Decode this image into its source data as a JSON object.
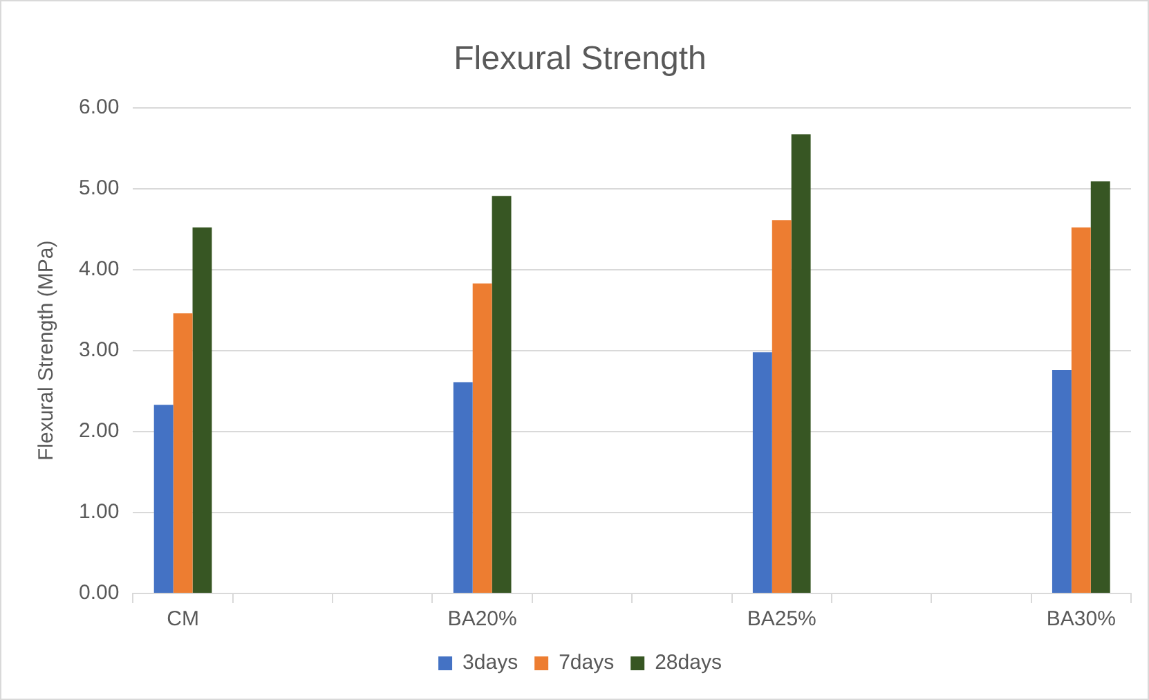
{
  "chart_data": {
    "type": "bar",
    "title": "Flexural Strength",
    "ylabel": "Flexural Strength (MPa)",
    "categories": [
      "CM",
      null,
      null,
      "BA20%",
      null,
      null,
      "BA25%",
      null,
      null,
      "BA30%"
    ],
    "series": [
      {
        "name": "3days",
        "color": "#4472c4",
        "values": [
          2.33,
          null,
          null,
          2.61,
          null,
          null,
          2.98,
          null,
          null,
          2.76
        ]
      },
      {
        "name": "7days",
        "color": "#ed7d31",
        "values": [
          3.46,
          null,
          null,
          3.83,
          null,
          null,
          4.61,
          null,
          null,
          4.52
        ]
      },
      {
        "name": "28days",
        "color": "#375623",
        "values": [
          4.52,
          null,
          null,
          4.91,
          null,
          null,
          5.67,
          null,
          null,
          5.09
        ]
      }
    ],
    "ylim": [
      0,
      6
    ],
    "yticks": [
      {
        "value": 0,
        "label": "0.00"
      },
      {
        "value": 1,
        "label": "1.00"
      },
      {
        "value": 2,
        "label": "2.00"
      },
      {
        "value": 3,
        "label": "3.00"
      },
      {
        "value": 4,
        "label": "4.00"
      },
      {
        "value": 5,
        "label": "5.00"
      },
      {
        "value": 6,
        "label": "6.00"
      }
    ],
    "grid": "y",
    "legend": "bottom"
  }
}
